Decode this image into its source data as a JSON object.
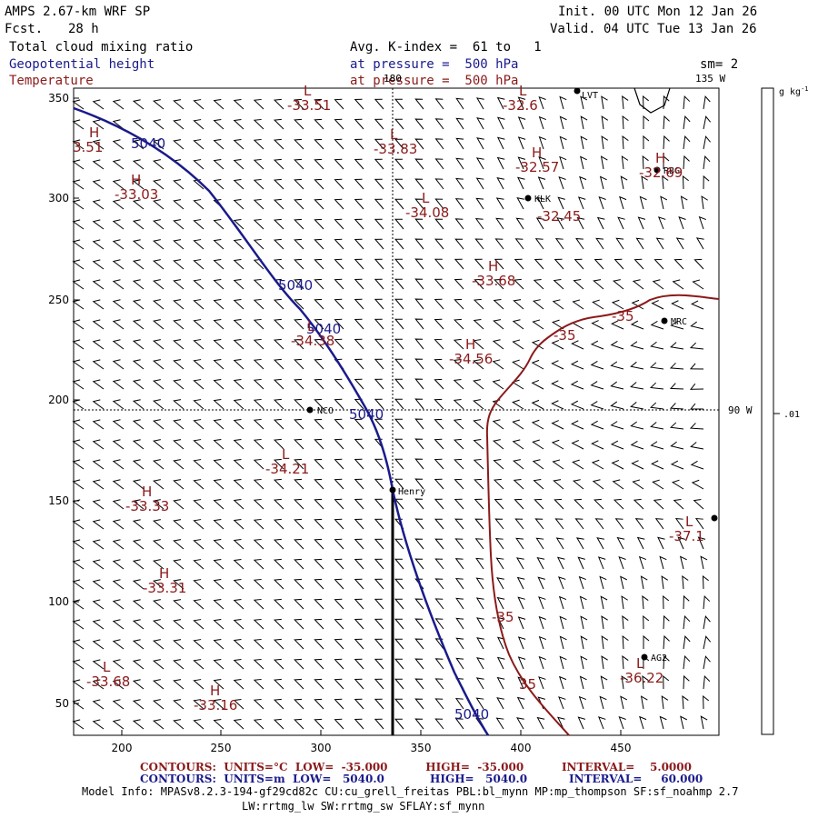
{
  "header": {
    "model": "AMPS 2.67-km WRF SP",
    "fcst_label": "Fcst.",
    "fcst_value": "28 h",
    "init": "Init. 00 UTC Mon 12 Jan 26",
    "valid": "Valid. 04 UTC Tue 13 Jan 26",
    "field1": "Total cloud mixing ratio",
    "field2": "Geopotential height",
    "field3": "Temperature",
    "avg": "Avg. K-index =  61 to   1",
    "pressure1": "at pressure =  500 hPa",
    "pressure2": "at pressure =  500 hPa",
    "sm": "sm= 2"
  },
  "colorbar": {
    "unit": "g kg",
    "unit_exp": "-1",
    "tick": ".01"
  },
  "axes": {
    "x_ticks": [
      "200",
      "250",
      "300",
      "350",
      "400",
      "450"
    ],
    "y_ticks": [
      "350",
      "300",
      "250",
      "200",
      "150",
      "100",
      "50"
    ]
  },
  "map_labels": {
    "lon_180": "180",
    "lon_135w": "135 W",
    "lon_90w": "90 W",
    "contour_5040": "5040",
    "contour_m35": "-35",
    "contour_35": "35"
  },
  "stations": {
    "lvt": "LVT",
    "rbg": "RBG",
    "klk": "KLK",
    "mrc": "MRC",
    "nco": "NCO",
    "henry": "Henry",
    "ag2": "AG2"
  },
  "extrema": [
    {
      "type": "L",
      "value": "-33.51"
    },
    {
      "type": "H",
      "value": "3.51"
    },
    {
      "type": "L",
      "value": "-32.6"
    },
    {
      "type": "H",
      "value": "-33.03"
    },
    {
      "type": "L",
      "value": "-33.83"
    },
    {
      "type": "H",
      "value": "-32.57"
    },
    {
      "type": "H",
      "value": "-32.69"
    },
    {
      "type": "L",
      "value": "-34.08"
    },
    {
      "type": "",
      "value": "-32.45"
    },
    {
      "type": "H",
      "value": "-33.68"
    },
    {
      "type": "L",
      "value": "-34.38"
    },
    {
      "type": "H",
      "value": "-34.56"
    },
    {
      "type": "L",
      "value": "-34.21"
    },
    {
      "type": "H",
      "value": "-33.33"
    },
    {
      "type": "H",
      "value": "-33.31"
    },
    {
      "type": "L",
      "value": "-37.1"
    },
    {
      "type": "L",
      "value": "-33.68"
    },
    {
      "type": "H",
      "value": "-33.16"
    },
    {
      "type": "L",
      "value": "-36.22"
    }
  ],
  "footer": {
    "line1": "CONTOURS:  UNITS=°C  LOW=  -35.000          HIGH=  -35.000          INTERVAL=    5.0000",
    "line2": "CONTOURS:  UNITS=m  LOW=   5040.0            HIGH=   5040.0           INTERVAL=     60.000",
    "model_info": "Model Info: MPASv8.2.3-194-gf29cd82c CU:cu_grell_freitas PBL:bl_mynn MP:mp_thompson SF:sf_noahmp 2.7",
    "model_info2": "LW:rrtmg_lw SW:rrtmg_sw SFLAY:sf_mynn"
  },
  "colors": {
    "height": "#1a1a8c",
    "temperature": "#8b1a1a",
    "frame": "#000000"
  }
}
